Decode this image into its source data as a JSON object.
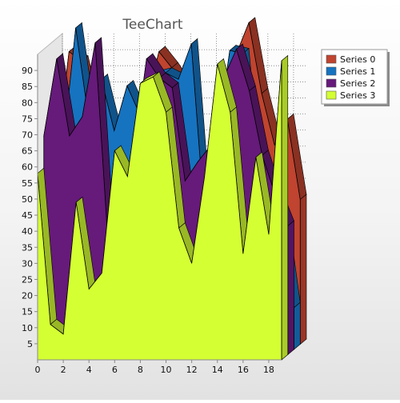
{
  "chart_data": {
    "type": "area",
    "title": "TeeChart",
    "xlabel": "",
    "ylabel": "",
    "x": [
      0,
      1,
      2,
      3,
      4,
      5,
      6,
      7,
      8,
      9,
      10,
      11,
      12,
      13,
      14,
      15,
      16,
      17,
      18,
      19
    ],
    "xticks": [
      0,
      2,
      4,
      6,
      8,
      10,
      12,
      14,
      16,
      18
    ],
    "yticks": [
      5,
      10,
      15,
      20,
      25,
      30,
      35,
      40,
      45,
      50,
      55,
      60,
      65,
      70,
      75,
      80,
      85,
      90
    ],
    "xlim": [
      0,
      19
    ],
    "ylim": [
      0,
      95
    ],
    "grid": true,
    "legend_position": "top-right",
    "series": [
      {
        "name": "Series 0",
        "color": "#C0442F",
        "values": [
          58,
          91,
          88,
          71,
          52,
          36,
          63,
          75,
          91,
          86,
          80,
          48,
          38,
          62,
          90,
          100,
          78,
          62,
          70,
          45
        ]
      },
      {
        "name": "Series 1",
        "color": "#1673C0",
        "values": [
          60,
          62,
          100,
          72,
          84,
          68,
          82,
          73,
          85,
          86,
          84,
          95,
          43,
          65,
          93,
          92,
          49,
          40,
          42,
          13
        ]
      },
      {
        "name": "Series 2",
        "color": "#661A7A",
        "values": [
          68,
          92,
          68,
          74,
          97,
          35,
          30,
          62,
          92,
          86,
          83,
          54,
          60,
          65,
          86,
          95,
          82,
          62,
          50,
          40
        ]
      },
      {
        "name": "Series 3",
        "color": "#D4FF33",
        "values": [
          58,
          11,
          8,
          49,
          22,
          27,
          65,
          57,
          86,
          88,
          77,
          41,
          30,
          57,
          92,
          77,
          33,
          63,
          39,
          93
        ]
      }
    ]
  }
}
